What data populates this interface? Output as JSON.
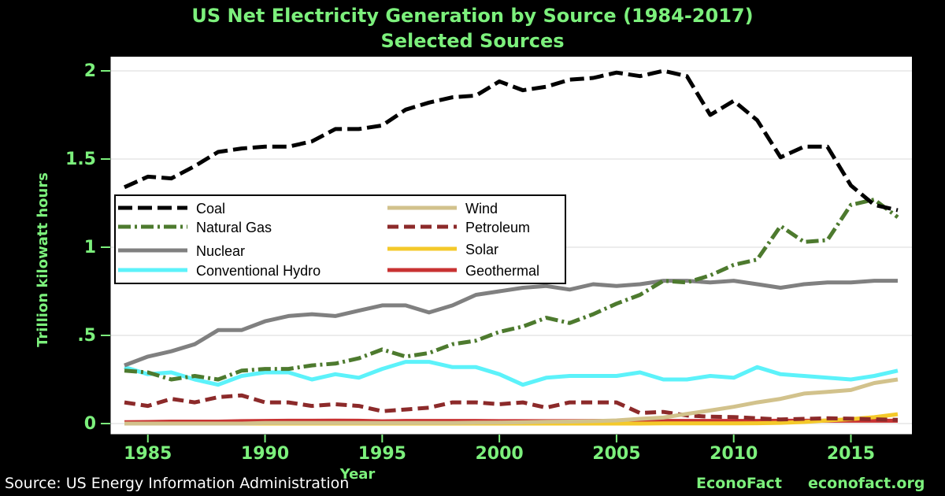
{
  "chart_data": {
    "type": "line",
    "title": "US Net Electricity Generation by Source (1984-2017)",
    "subtitle": "Selected Sources",
    "xlabel": "Year",
    "ylabel": "Trillion kilowatt hours",
    "xlim": [
      1984,
      2017
    ],
    "ylim": [
      0,
      2.0
    ],
    "x_ticks": [
      1985,
      1990,
      1995,
      2000,
      2005,
      2010,
      2015
    ],
    "y_ticks": [
      0,
      0.5,
      1,
      1.5,
      2
    ],
    "y_tick_labels": [
      "0",
      ".5",
      "1",
      "1.5",
      "2"
    ],
    "grid": true,
    "legend_position": "center-left",
    "x": [
      1984,
      1985,
      1986,
      1987,
      1988,
      1989,
      1990,
      1991,
      1992,
      1993,
      1994,
      1995,
      1996,
      1997,
      1998,
      1999,
      2000,
      2001,
      2002,
      2003,
      2004,
      2005,
      2006,
      2007,
      2008,
      2009,
      2010,
      2011,
      2012,
      2013,
      2014,
      2015,
      2016,
      2017
    ],
    "series": [
      {
        "name": "Coal",
        "color": "#000000",
        "dash": "18 7",
        "values": [
          1.34,
          1.4,
          1.39,
          1.46,
          1.54,
          1.56,
          1.57,
          1.57,
          1.6,
          1.67,
          1.67,
          1.69,
          1.78,
          1.82,
          1.85,
          1.86,
          1.94,
          1.89,
          1.91,
          1.95,
          1.96,
          1.99,
          1.97,
          2.0,
          1.97,
          1.75,
          1.83,
          1.72,
          1.51,
          1.57,
          1.57,
          1.35,
          1.24,
          1.21
        ]
      },
      {
        "name": "Natural Gas",
        "color": "#4D7A2E",
        "dash": "16 5 3 5",
        "values": [
          0.3,
          0.29,
          0.25,
          0.27,
          0.25,
          0.3,
          0.31,
          0.31,
          0.33,
          0.34,
          0.37,
          0.42,
          0.38,
          0.4,
          0.45,
          0.47,
          0.52,
          0.55,
          0.6,
          0.57,
          0.62,
          0.68,
          0.73,
          0.81,
          0.8,
          0.84,
          0.9,
          0.93,
          1.12,
          1.03,
          1.04,
          1.24,
          1.27,
          1.17
        ]
      },
      {
        "name": "Nuclear",
        "color": "#808080",
        "dash": "",
        "values": [
          0.33,
          0.38,
          0.41,
          0.45,
          0.53,
          0.53,
          0.58,
          0.61,
          0.62,
          0.61,
          0.64,
          0.67,
          0.67,
          0.63,
          0.67,
          0.73,
          0.75,
          0.77,
          0.78,
          0.76,
          0.79,
          0.78,
          0.79,
          0.81,
          0.81,
          0.8,
          0.81,
          0.79,
          0.77,
          0.79,
          0.8,
          0.8,
          0.81,
          0.81
        ]
      },
      {
        "name": "Conventional Hydro",
        "color": "#5CF2FA",
        "dash": "",
        "values": [
          0.32,
          0.28,
          0.29,
          0.25,
          0.22,
          0.27,
          0.29,
          0.29,
          0.25,
          0.28,
          0.26,
          0.31,
          0.35,
          0.35,
          0.32,
          0.32,
          0.28,
          0.22,
          0.26,
          0.27,
          0.27,
          0.27,
          0.29,
          0.25,
          0.25,
          0.27,
          0.26,
          0.32,
          0.28,
          0.27,
          0.26,
          0.25,
          0.27,
          0.3
        ]
      },
      {
        "name": "Wind",
        "color": "#D2C28C",
        "dash": "",
        "values": [
          0.0,
          0.0,
          0.0,
          0.0,
          0.0,
          0.0,
          0.003,
          0.003,
          0.003,
          0.003,
          0.003,
          0.003,
          0.003,
          0.003,
          0.003,
          0.005,
          0.006,
          0.007,
          0.01,
          0.011,
          0.014,
          0.018,
          0.027,
          0.034,
          0.055,
          0.074,
          0.095,
          0.12,
          0.14,
          0.17,
          0.18,
          0.19,
          0.23,
          0.25
        ]
      },
      {
        "name": "Petroleum",
        "color": "#8C2A2A",
        "dash": "14 7",
        "values": [
          0.12,
          0.1,
          0.14,
          0.12,
          0.15,
          0.16,
          0.12,
          0.12,
          0.1,
          0.11,
          0.1,
          0.07,
          0.08,
          0.09,
          0.12,
          0.12,
          0.11,
          0.12,
          0.09,
          0.12,
          0.12,
          0.12,
          0.06,
          0.066,
          0.046,
          0.039,
          0.037,
          0.03,
          0.023,
          0.027,
          0.03,
          0.028,
          0.024,
          0.021
        ]
      },
      {
        "name": "Solar",
        "color": "#F4C92A",
        "dash": "",
        "values": [
          0.0,
          0.0,
          0.0,
          0.0,
          0.0,
          0.0,
          0.0,
          0.0,
          0.0,
          0.0,
          0.0,
          0.0,
          0.0,
          0.0,
          0.0,
          0.0,
          0.0,
          0.0,
          0.0,
          0.0,
          0.0,
          0.0,
          0.0,
          0.001,
          0.001,
          0.001,
          0.001,
          0.002,
          0.004,
          0.009,
          0.018,
          0.025,
          0.036,
          0.053
        ]
      },
      {
        "name": "Geothermal",
        "color": "#C83232",
        "dash": "",
        "values": [
          0.008,
          0.009,
          0.011,
          0.011,
          0.011,
          0.014,
          0.015,
          0.016,
          0.016,
          0.017,
          0.016,
          0.013,
          0.015,
          0.015,
          0.015,
          0.015,
          0.014,
          0.014,
          0.014,
          0.014,
          0.015,
          0.015,
          0.015,
          0.015,
          0.015,
          0.015,
          0.015,
          0.015,
          0.016,
          0.016,
          0.016,
          0.016,
          0.016,
          0.016
        ]
      }
    ]
  },
  "footer": {
    "source": "Source: US Energy Information Administration",
    "brand": "EconoFact",
    "site": "econofact.org"
  }
}
